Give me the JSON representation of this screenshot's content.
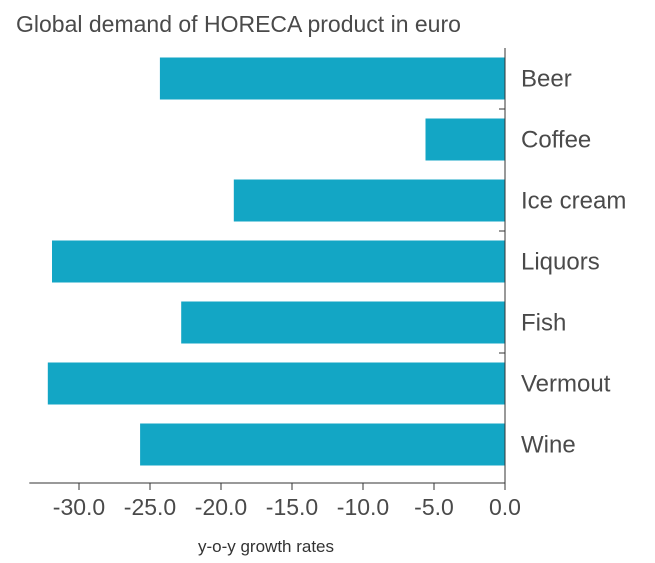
{
  "chart_data": {
    "type": "bar",
    "orientation": "horizontal",
    "title": "Global demand of HORECA product in euro",
    "xlabel": "y-o-y growth rates",
    "ylabel": "",
    "categories": [
      "Beer",
      "Coffee",
      "Ice cream",
      "Liquors",
      "Fish",
      "Vermout",
      "Wine"
    ],
    "values": [
      -24.3,
      -5.6,
      -19.1,
      -31.9,
      -22.8,
      -32.2,
      -25.7
    ],
    "xlim": [
      -33.5,
      0
    ],
    "xticks": [
      "-30.0",
      "-25.0",
      "-20.0",
      "-15.0",
      "-10.0",
      "-5.0",
      "0.0"
    ],
    "xtick_values": [
      -30,
      -25,
      -20,
      -15,
      -10,
      -5,
      0
    ],
    "bar_color": "#13a6c5",
    "grid": false,
    "legend": "none"
  }
}
